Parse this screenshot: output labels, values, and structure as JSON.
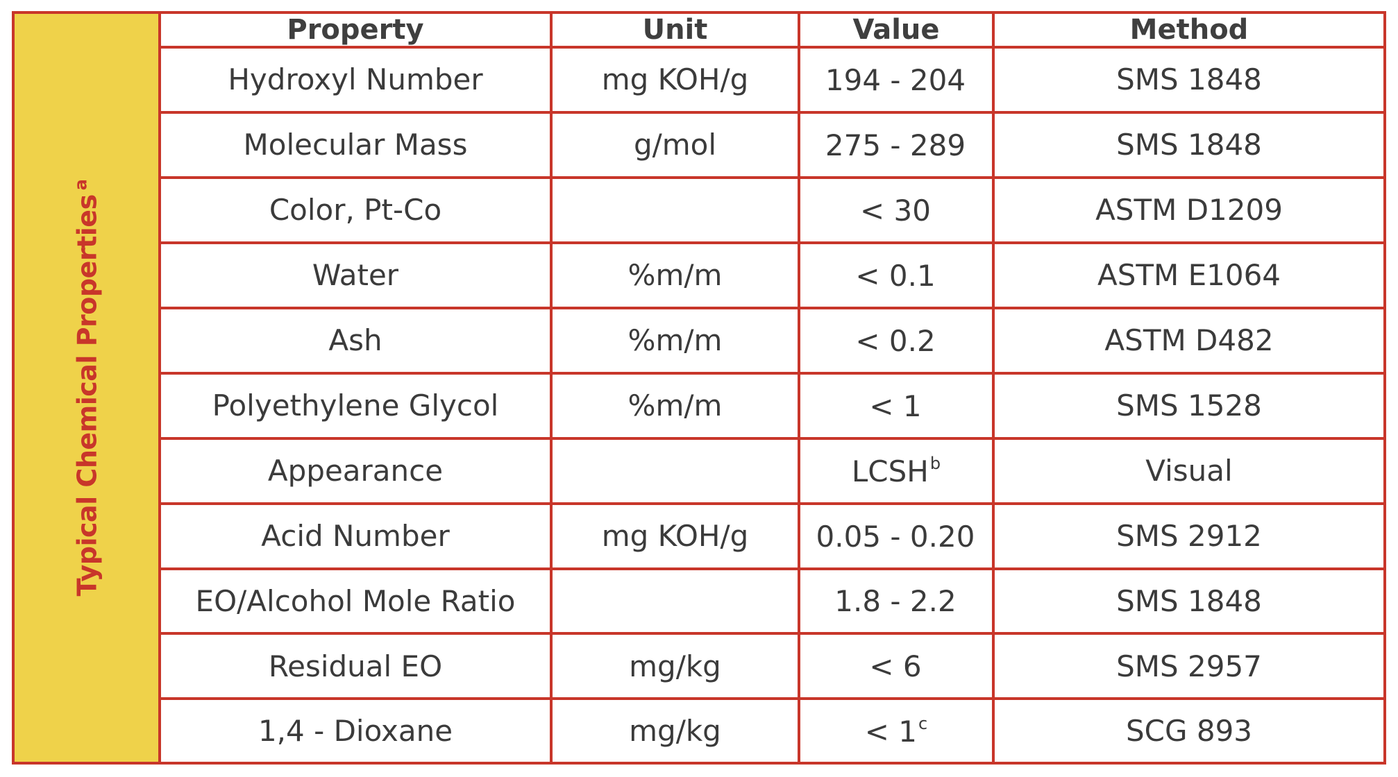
{
  "side_label": {
    "text": "Typical Chemical Properties",
    "superscript": "a"
  },
  "headers": {
    "property": "Property",
    "unit": "Unit",
    "value": "Value",
    "method": "Method"
  },
  "rows": [
    {
      "property": "Hydroxyl Number",
      "unit": "mg KOH/g",
      "value": "194 - 204",
      "value_sup": "",
      "method": "SMS 1848"
    },
    {
      "property": "Molecular Mass",
      "unit": "g/mol",
      "value": "275 - 289",
      "value_sup": "",
      "method": "SMS 1848"
    },
    {
      "property": "Color, Pt-Co",
      "unit": "",
      "value": "< 30",
      "value_sup": "",
      "method": "ASTM D1209"
    },
    {
      "property": "Water",
      "unit": "%m/m",
      "value": "< 0.1",
      "value_sup": "",
      "method": "ASTM E1064"
    },
    {
      "property": "Ash",
      "unit": "%m/m",
      "value": "< 0.2",
      "value_sup": "",
      "method": "ASTM D482"
    },
    {
      "property": "Polyethylene Glycol",
      "unit": "%m/m",
      "value": "< 1",
      "value_sup": "",
      "method": "SMS 1528"
    },
    {
      "property": "Appearance",
      "unit": "",
      "value": "LCSH",
      "value_sup": "b",
      "method": "Visual"
    },
    {
      "property": "Acid Number",
      "unit": "mg KOH/g",
      "value": "0.05 - 0.20",
      "value_sup": "",
      "method": "SMS 2912"
    },
    {
      "property": "EO/Alcohol Mole Ratio",
      "unit": "",
      "value": "1.8 - 2.2",
      "value_sup": "",
      "method": "SMS 1848"
    },
    {
      "property": "Residual EO",
      "unit": "mg/kg",
      "value": "< 6",
      "value_sup": "",
      "method": "SMS 2957"
    },
    {
      "property": "1,4 - Dioxane",
      "unit": "mg/kg",
      "value": "< 1",
      "value_sup": "c",
      "method": "SCG  893"
    }
  ],
  "colors": {
    "border": "#c8362a",
    "side_band": "#efd24a",
    "side_label": "#c8362a",
    "text": "#3b3b3b"
  }
}
